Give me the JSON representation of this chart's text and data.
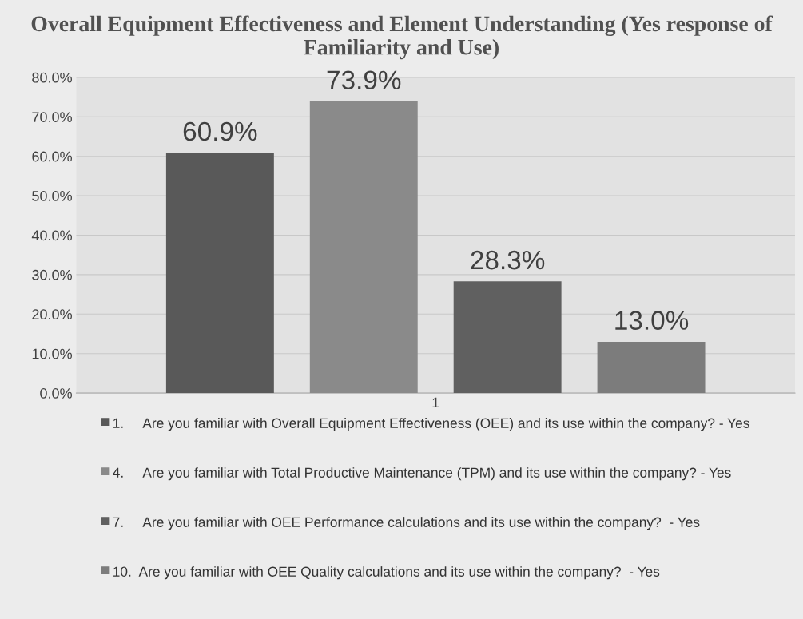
{
  "chart_data": {
    "type": "bar",
    "title": "Overall Equipment Effectiveness and Element Understanding (Yes response of Familiarity and Use)",
    "categories": [
      "1"
    ],
    "series": [
      {
        "name": "1.     Are you familiar with Overall Equipment Effectiveness (OEE) and its use within the company? - Yes",
        "color": "#595959",
        "values": [
          60.9
        ],
        "value_labels": [
          "60.9%"
        ]
      },
      {
        "name": "4.     Are you familiar with Total Productive Maintenance (TPM) and its use within the company? - Yes",
        "color": "#8a8a8a",
        "values": [
          73.9
        ],
        "value_labels": [
          "73.9%"
        ]
      },
      {
        "name": "7.     Are you familiar with OEE Performance calculations and its use within the company?  - Yes",
        "color": "#606060",
        "values": [
          28.3
        ],
        "value_labels": [
          "28.3%"
        ]
      },
      {
        "name": "10.  Are you familiar with OEE Quality calculations and its use within the company?  - Yes",
        "color": "#7c7c7c",
        "values": [
          13.0
        ],
        "value_labels": [
          "13.0%"
        ]
      }
    ],
    "ylim": [
      0,
      80
    ],
    "yticks": [
      {
        "value": 0,
        "label": "0.0%"
      },
      {
        "value": 10,
        "label": "10.0%"
      },
      {
        "value": 20,
        "label": "20.0%"
      },
      {
        "value": 30,
        "label": "30.0%"
      },
      {
        "value": 40,
        "label": "40.0%"
      },
      {
        "value": 50,
        "label": "50.0%"
      },
      {
        "value": 60,
        "label": "60.0%"
      },
      {
        "value": 70,
        "label": "70.0%"
      },
      {
        "value": 80,
        "label": "80.0%"
      }
    ],
    "grid": "y",
    "legend": "bottom"
  }
}
